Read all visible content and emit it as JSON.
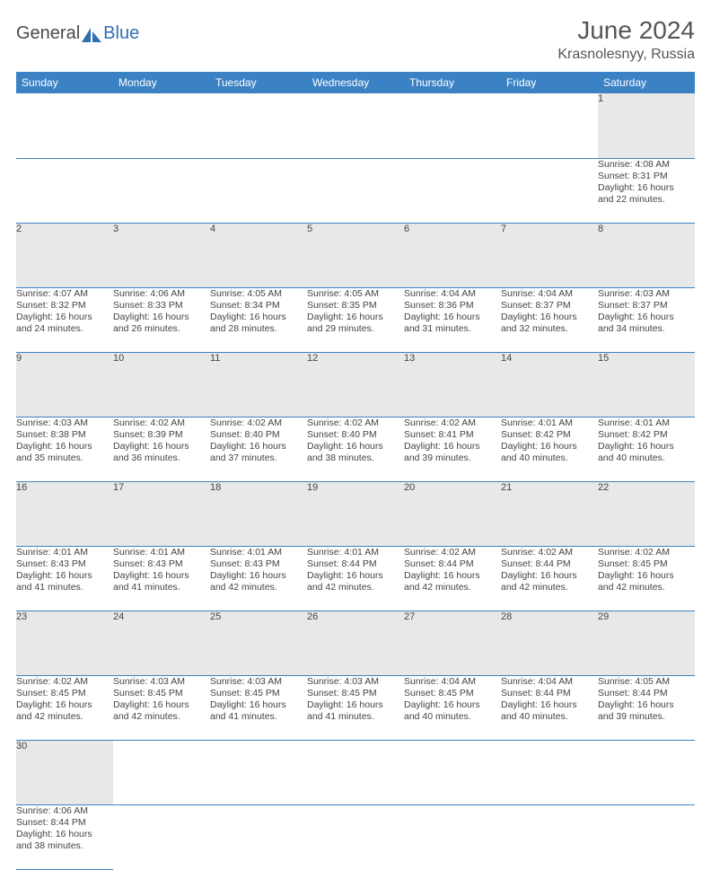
{
  "brand": {
    "general": "General",
    "blue": "Blue",
    "icon_color": "#2f6fb0"
  },
  "title": "June 2024",
  "location": "Krasnolesnyy, Russia",
  "header_bg": "#3b82c4",
  "daynum_bg": "#e8e8e8",
  "divider_color": "#3b82c4",
  "weekdays": [
    "Sunday",
    "Monday",
    "Tuesday",
    "Wednesday",
    "Thursday",
    "Friday",
    "Saturday"
  ],
  "weeks": [
    [
      null,
      null,
      null,
      null,
      null,
      null,
      {
        "n": "1",
        "sunrise": "Sunrise: 4:08 AM",
        "sunset": "Sunset: 8:31 PM",
        "day1": "Daylight: 16 hours",
        "day2": "and 22 minutes."
      }
    ],
    [
      {
        "n": "2",
        "sunrise": "Sunrise: 4:07 AM",
        "sunset": "Sunset: 8:32 PM",
        "day1": "Daylight: 16 hours",
        "day2": "and 24 minutes."
      },
      {
        "n": "3",
        "sunrise": "Sunrise: 4:06 AM",
        "sunset": "Sunset: 8:33 PM",
        "day1": "Daylight: 16 hours",
        "day2": "and 26 minutes."
      },
      {
        "n": "4",
        "sunrise": "Sunrise: 4:05 AM",
        "sunset": "Sunset: 8:34 PM",
        "day1": "Daylight: 16 hours",
        "day2": "and 28 minutes."
      },
      {
        "n": "5",
        "sunrise": "Sunrise: 4:05 AM",
        "sunset": "Sunset: 8:35 PM",
        "day1": "Daylight: 16 hours",
        "day2": "and 29 minutes."
      },
      {
        "n": "6",
        "sunrise": "Sunrise: 4:04 AM",
        "sunset": "Sunset: 8:36 PM",
        "day1": "Daylight: 16 hours",
        "day2": "and 31 minutes."
      },
      {
        "n": "7",
        "sunrise": "Sunrise: 4:04 AM",
        "sunset": "Sunset: 8:37 PM",
        "day1": "Daylight: 16 hours",
        "day2": "and 32 minutes."
      },
      {
        "n": "8",
        "sunrise": "Sunrise: 4:03 AM",
        "sunset": "Sunset: 8:37 PM",
        "day1": "Daylight: 16 hours",
        "day2": "and 34 minutes."
      }
    ],
    [
      {
        "n": "9",
        "sunrise": "Sunrise: 4:03 AM",
        "sunset": "Sunset: 8:38 PM",
        "day1": "Daylight: 16 hours",
        "day2": "and 35 minutes."
      },
      {
        "n": "10",
        "sunrise": "Sunrise: 4:02 AM",
        "sunset": "Sunset: 8:39 PM",
        "day1": "Daylight: 16 hours",
        "day2": "and 36 minutes."
      },
      {
        "n": "11",
        "sunrise": "Sunrise: 4:02 AM",
        "sunset": "Sunset: 8:40 PM",
        "day1": "Daylight: 16 hours",
        "day2": "and 37 minutes."
      },
      {
        "n": "12",
        "sunrise": "Sunrise: 4:02 AM",
        "sunset": "Sunset: 8:40 PM",
        "day1": "Daylight: 16 hours",
        "day2": "and 38 minutes."
      },
      {
        "n": "13",
        "sunrise": "Sunrise: 4:02 AM",
        "sunset": "Sunset: 8:41 PM",
        "day1": "Daylight: 16 hours",
        "day2": "and 39 minutes."
      },
      {
        "n": "14",
        "sunrise": "Sunrise: 4:01 AM",
        "sunset": "Sunset: 8:42 PM",
        "day1": "Daylight: 16 hours",
        "day2": "and 40 minutes."
      },
      {
        "n": "15",
        "sunrise": "Sunrise: 4:01 AM",
        "sunset": "Sunset: 8:42 PM",
        "day1": "Daylight: 16 hours",
        "day2": "and 40 minutes."
      }
    ],
    [
      {
        "n": "16",
        "sunrise": "Sunrise: 4:01 AM",
        "sunset": "Sunset: 8:43 PM",
        "day1": "Daylight: 16 hours",
        "day2": "and 41 minutes."
      },
      {
        "n": "17",
        "sunrise": "Sunrise: 4:01 AM",
        "sunset": "Sunset: 8:43 PM",
        "day1": "Daylight: 16 hours",
        "day2": "and 41 minutes."
      },
      {
        "n": "18",
        "sunrise": "Sunrise: 4:01 AM",
        "sunset": "Sunset: 8:43 PM",
        "day1": "Daylight: 16 hours",
        "day2": "and 42 minutes."
      },
      {
        "n": "19",
        "sunrise": "Sunrise: 4:01 AM",
        "sunset": "Sunset: 8:44 PM",
        "day1": "Daylight: 16 hours",
        "day2": "and 42 minutes."
      },
      {
        "n": "20",
        "sunrise": "Sunrise: 4:02 AM",
        "sunset": "Sunset: 8:44 PM",
        "day1": "Daylight: 16 hours",
        "day2": "and 42 minutes."
      },
      {
        "n": "21",
        "sunrise": "Sunrise: 4:02 AM",
        "sunset": "Sunset: 8:44 PM",
        "day1": "Daylight: 16 hours",
        "day2": "and 42 minutes."
      },
      {
        "n": "22",
        "sunrise": "Sunrise: 4:02 AM",
        "sunset": "Sunset: 8:45 PM",
        "day1": "Daylight: 16 hours",
        "day2": "and 42 minutes."
      }
    ],
    [
      {
        "n": "23",
        "sunrise": "Sunrise: 4:02 AM",
        "sunset": "Sunset: 8:45 PM",
        "day1": "Daylight: 16 hours",
        "day2": "and 42 minutes."
      },
      {
        "n": "24",
        "sunrise": "Sunrise: 4:03 AM",
        "sunset": "Sunset: 8:45 PM",
        "day1": "Daylight: 16 hours",
        "day2": "and 42 minutes."
      },
      {
        "n": "25",
        "sunrise": "Sunrise: 4:03 AM",
        "sunset": "Sunset: 8:45 PM",
        "day1": "Daylight: 16 hours",
        "day2": "and 41 minutes."
      },
      {
        "n": "26",
        "sunrise": "Sunrise: 4:03 AM",
        "sunset": "Sunset: 8:45 PM",
        "day1": "Daylight: 16 hours",
        "day2": "and 41 minutes."
      },
      {
        "n": "27",
        "sunrise": "Sunrise: 4:04 AM",
        "sunset": "Sunset: 8:45 PM",
        "day1": "Daylight: 16 hours",
        "day2": "and 40 minutes."
      },
      {
        "n": "28",
        "sunrise": "Sunrise: 4:04 AM",
        "sunset": "Sunset: 8:44 PM",
        "day1": "Daylight: 16 hours",
        "day2": "and 40 minutes."
      },
      {
        "n": "29",
        "sunrise": "Sunrise: 4:05 AM",
        "sunset": "Sunset: 8:44 PM",
        "day1": "Daylight: 16 hours",
        "day2": "and 39 minutes."
      }
    ],
    [
      {
        "n": "30",
        "sunrise": "Sunrise: 4:06 AM",
        "sunset": "Sunset: 8:44 PM",
        "day1": "Daylight: 16 hours",
        "day2": "and 38 minutes."
      },
      null,
      null,
      null,
      null,
      null,
      null
    ]
  ]
}
